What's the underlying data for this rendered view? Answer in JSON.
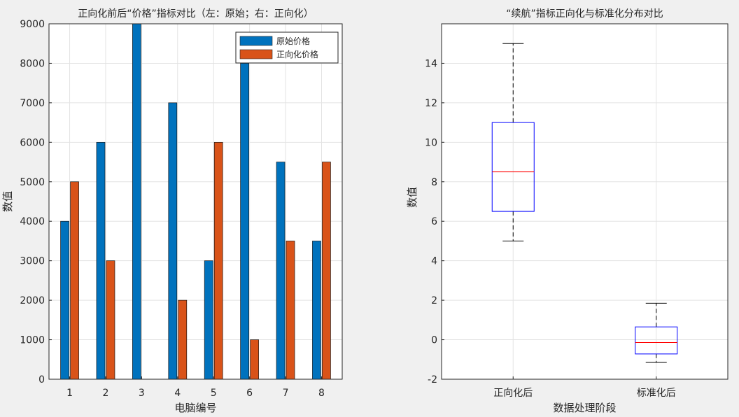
{
  "chart_data": [
    {
      "type": "bar",
      "title": "正向化前后“价格”指标对比（左：原始；右：正向化）",
      "xlabel": "电脑编号",
      "ylabel": "数值",
      "categories": [
        "1",
        "2",
        "3",
        "4",
        "5",
        "6",
        "7",
        "8"
      ],
      "ylim": [
        0,
        9000
      ],
      "yticks": [
        0,
        1000,
        2000,
        3000,
        4000,
        5000,
        6000,
        7000,
        8000,
        9000
      ],
      "grid": true,
      "legend_position": "top-right",
      "series": [
        {
          "name": "原始价格",
          "color": "#0072BD",
          "values": [
            4000,
            6000,
            9000,
            7000,
            3000,
            8000,
            5500,
            3500
          ]
        },
        {
          "name": "正向化价格",
          "color": "#D95319",
          "values": [
            5000,
            3000,
            0,
            2000,
            6000,
            1000,
            3500,
            5500
          ]
        }
      ]
    },
    {
      "type": "box",
      "title": "“续航”指标正向化与标准化分布对比",
      "xlabel": "数据处理阶段",
      "ylabel": "数值",
      "categories": [
        "正向化后",
        "标准化后"
      ],
      "ylim": [
        -2,
        16
      ],
      "yticks": [
        -2,
        0,
        2,
        4,
        6,
        8,
        10,
        12,
        14
      ],
      "grid": true,
      "box_color": "#0000FF",
      "median_color": "#FF0000",
      "boxes": [
        {
          "whisker_low": 5,
          "q1": 6.5,
          "median": 8.5,
          "q3": 11,
          "whisker_high": 15
        },
        {
          "whisker_low": -1.15,
          "q1": -0.72,
          "median": -0.14,
          "q3": 0.65,
          "whisker_high": 1.85
        }
      ]
    }
  ]
}
